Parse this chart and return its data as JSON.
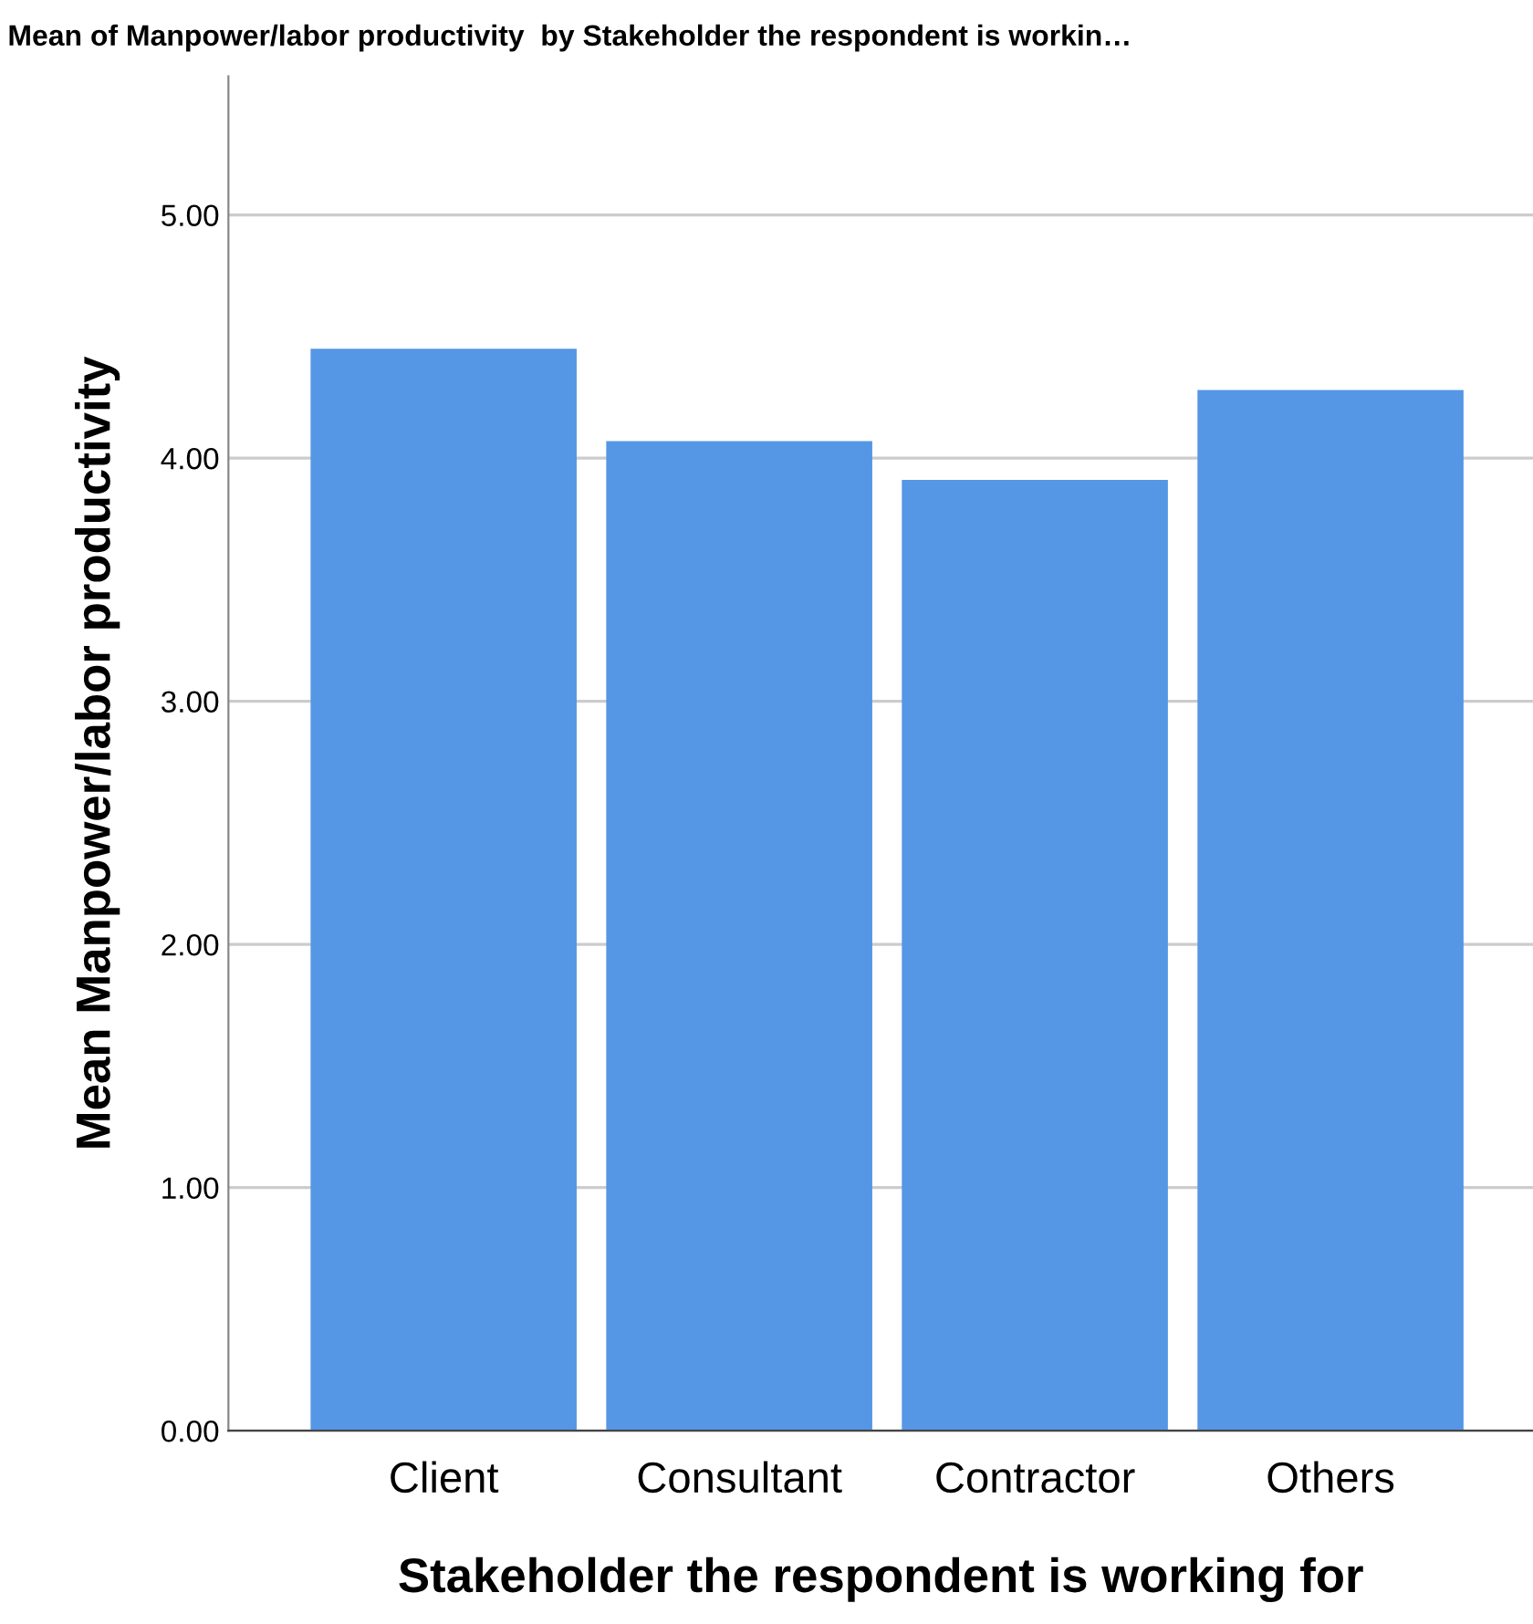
{
  "chart_data": {
    "type": "bar",
    "title": "Mean of Manpower/labor productivity  by Stakeholder the respondent is workin…",
    "xlabel": "Stakeholder the respondent is working for",
    "ylabel": "Mean Manpower/labor productivity",
    "categories": [
      "Client",
      "Consultant",
      "Contractor",
      "Others"
    ],
    "values": [
      4.45,
      4.07,
      3.91,
      4.28
    ],
    "color": "#5596e5",
    "ylim": [
      0,
      5.57
    ],
    "yticks": [
      {
        "value": 0,
        "label": "0.00"
      },
      {
        "value": 1,
        "label": "1.00"
      },
      {
        "value": 2,
        "label": "2.00"
      },
      {
        "value": 3,
        "label": "3.00"
      },
      {
        "value": 4,
        "label": "4.00"
      },
      {
        "value": 5,
        "label": "5.00"
      }
    ],
    "grid": "y"
  }
}
